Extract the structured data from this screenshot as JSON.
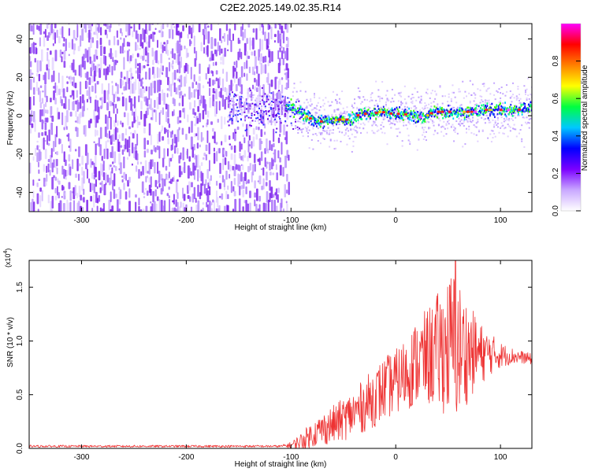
{
  "title": "C2E2.2025.149.02.35.R14",
  "chart_data": [
    {
      "type": "heatmap",
      "name": "spectrogram",
      "xlabel": "Height of straight line (km)",
      "ylabel": "Frequency (Hz)",
      "xlim": [
        -350,
        130
      ],
      "ylim": [
        -50,
        48
      ],
      "xticks": [
        -300,
        -200,
        -100,
        0,
        100
      ],
      "xtick_labels": [
        "-300",
        "-200",
        "-100",
        "0",
        "100"
      ],
      "yticks": [
        -40,
        -20,
        0,
        20,
        40
      ],
      "ytick_labels": [
        "-40",
        "-20",
        "0",
        "20",
        "40"
      ],
      "noise_region_x": [
        -350,
        -103
      ],
      "signal_ridge": {
        "x": [
          -105,
          -95,
          -85,
          -75,
          -65,
          -55,
          -45,
          -35,
          -25,
          -15,
          -5,
          5,
          15,
          25,
          35,
          45,
          55,
          65,
          75,
          85,
          95,
          105,
          115,
          125,
          130
        ],
        "freq": [
          5,
          3,
          -1,
          -3,
          -3,
          -2,
          -2,
          1,
          1,
          2,
          1,
          1,
          0,
          -1,
          2,
          2,
          2,
          2,
          2,
          3,
          3,
          3,
          3,
          4,
          4
        ]
      },
      "colorbar": {
        "label": "Normalized spectral amplitude",
        "range": [
          0,
          1
        ],
        "ticks": [
          0.0,
          0.2,
          0.4,
          0.6,
          0.8
        ],
        "tick_labels": [
          "0.0",
          "0.2",
          "0.4",
          "0.6",
          "0.8"
        ],
        "colors": [
          "#ffffff",
          "#c9a8ff",
          "#7b00ff",
          "#0000ff",
          "#00c8ff",
          "#00ff40",
          "#ffff00",
          "#ff8000",
          "#ff0000",
          "#ff00ff"
        ]
      }
    },
    {
      "type": "line",
      "name": "snr",
      "xlabel": "Height of straight line (km)",
      "ylabel": "SNR (10 * v/v)",
      "yscale_label": "(x10",
      "yscale_exponent": "4",
      "yscale_close": ")",
      "xlim": [
        -350,
        130
      ],
      "ylim": [
        0,
        1.75
      ],
      "xticks": [
        -300,
        -200,
        -100,
        0,
        100
      ],
      "xtick_labels": [
        "-300",
        "-200",
        "-100",
        "0",
        "100"
      ],
      "yticks": [
        0,
        0.5,
        1.0,
        1.5
      ],
      "ytick_labels": [
        "0.0",
        "0.5",
        "1.0",
        "1.5"
      ],
      "line_color": "#ee3333",
      "envelope": {
        "x": [
          -350,
          -110,
          -100,
          -90,
          -80,
          -70,
          -60,
          -50,
          -40,
          -30,
          -20,
          -10,
          0,
          10,
          20,
          30,
          40,
          50,
          55,
          60,
          70,
          80,
          90,
          100,
          110,
          120,
          130
        ],
        "mean": [
          0.02,
          0.02,
          0.03,
          0.07,
          0.13,
          0.18,
          0.22,
          0.27,
          0.33,
          0.4,
          0.48,
          0.56,
          0.62,
          0.7,
          0.8,
          0.85,
          0.9,
          0.95,
          0.95,
          0.92,
          0.9,
          0.88,
          0.88,
          0.87,
          0.86,
          0.85,
          0.83
        ],
        "spread": [
          0.01,
          0.01,
          0.03,
          0.08,
          0.12,
          0.15,
          0.18,
          0.2,
          0.22,
          0.25,
          0.28,
          0.3,
          0.3,
          0.35,
          0.4,
          0.45,
          0.55,
          0.65,
          0.75,
          0.65,
          0.45,
          0.3,
          0.2,
          0.12,
          0.08,
          0.06,
          0.05
        ]
      },
      "peak": {
        "x": 57,
        "y": 1.75
      }
    }
  ]
}
